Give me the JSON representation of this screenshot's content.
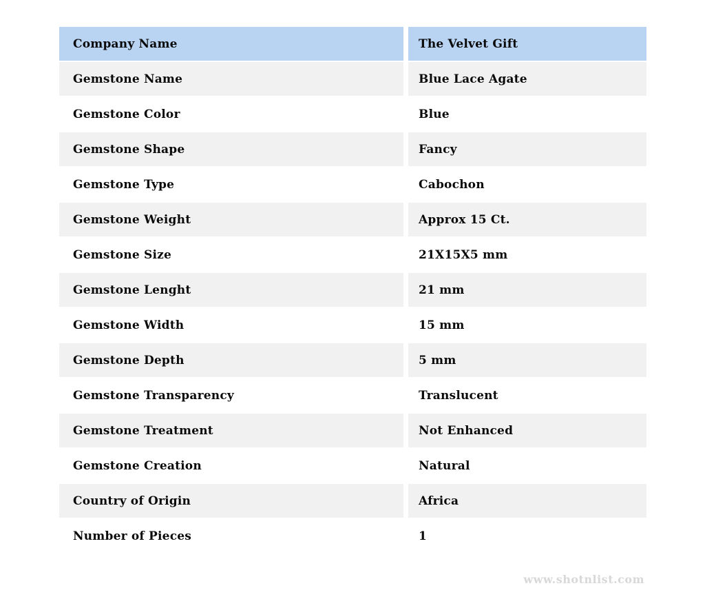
{
  "page": {
    "watermark": "www.shotnlist.com"
  },
  "colors": {
    "header_bg": "#b9d3f2",
    "row_alt_bg": "#f1f1f1",
    "row_bg": "#ffffff",
    "text": "#0a0a0a",
    "watermark_text": "#d8d8d8"
  },
  "table": {
    "header": {
      "label": "Company Name",
      "value": "The Velvet Gift"
    },
    "rows": [
      {
        "label": "Gemstone Name",
        "value": "Blue Lace Agate"
      },
      {
        "label": "Gemstone Color",
        "value": "Blue"
      },
      {
        "label": "Gemstone Shape",
        "value": "Fancy"
      },
      {
        "label": "Gemstone Type",
        "value": "Cabochon"
      },
      {
        "label": "Gemstone Weight",
        "value": "Approx 15 Ct."
      },
      {
        "label": "Gemstone Size",
        "value": "21X15X5 mm"
      },
      {
        "label": "Gemstone Lenght",
        "value": "21 mm"
      },
      {
        "label": "Gemstone Width",
        "value": "15 mm"
      },
      {
        "label": "Gemstone Depth",
        "value": "5 mm"
      },
      {
        "label": "Gemstone Transparency",
        "value": "Translucent"
      },
      {
        "label": "Gemstone Treatment",
        "value": "Not Enhanced"
      },
      {
        "label": "Gemstone Creation",
        "value": "Natural"
      },
      {
        "label": "Country of Origin",
        "value": "Africa"
      },
      {
        "label": "Number of Pieces",
        "value": "1"
      }
    ]
  }
}
